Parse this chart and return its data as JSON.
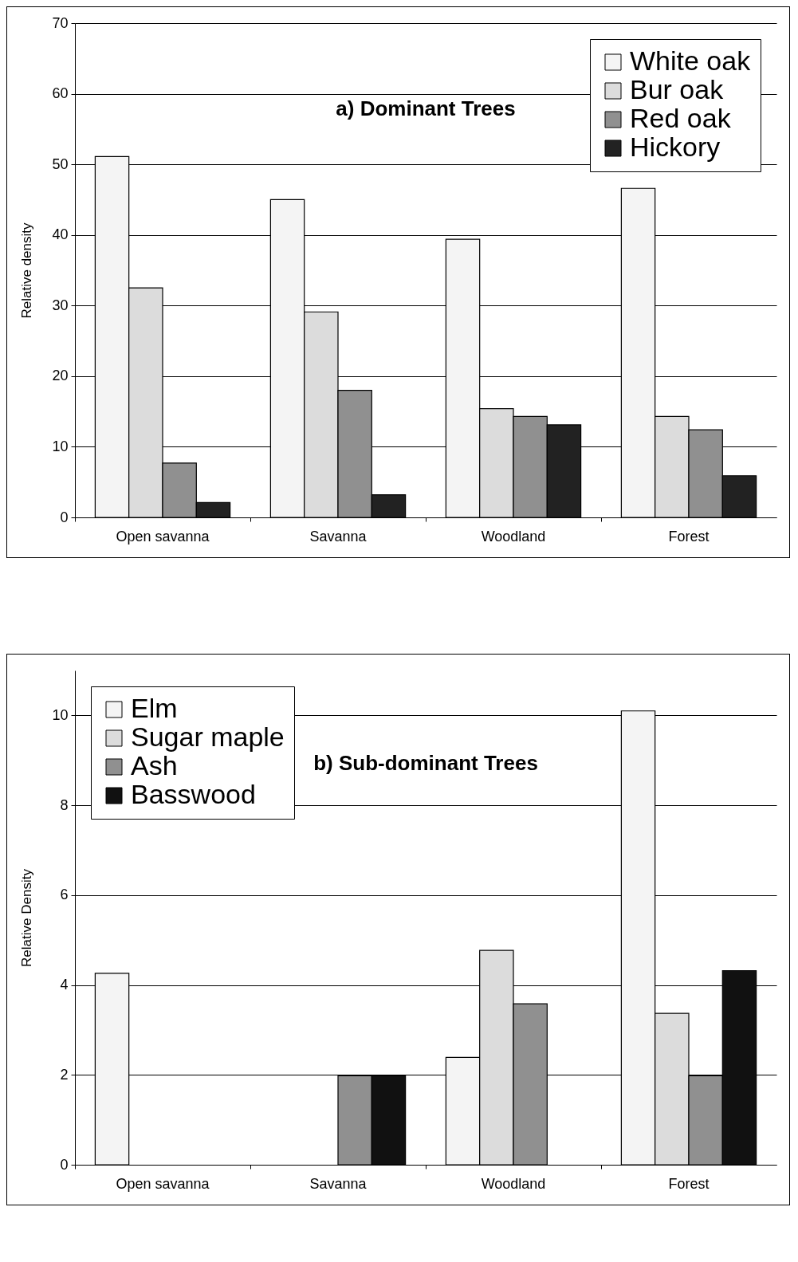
{
  "chart_data": [
    {
      "type": "bar",
      "title": "a) Dominant Trees",
      "ylabel": "Relative density",
      "categories": [
        "Open savanna",
        "Savanna",
        "Woodland",
        "Forest"
      ],
      "series": [
        {
          "name": "White oak",
          "color": "#f4f4f4",
          "values": [
            51.1,
            45.0,
            39.4,
            46.6
          ]
        },
        {
          "name": "Bur oak",
          "color": "#dcdcdc",
          "values": [
            32.5,
            29.1,
            15.4,
            14.3
          ]
        },
        {
          "name": "Red oak",
          "color": "#909090",
          "values": [
            7.7,
            18.0,
            14.3,
            12.4
          ]
        },
        {
          "name": "Hickory",
          "color": "#222222",
          "values": [
            2.1,
            3.2,
            13.1,
            5.9
          ]
        }
      ],
      "ylim": [
        0,
        70
      ],
      "yticks": [
        0,
        10,
        20,
        30,
        40,
        50,
        60,
        70
      ],
      "grid": "y",
      "legend": "top right"
    },
    {
      "type": "bar",
      "title": "b) Sub-dominant Trees",
      "ylabel": "Relative Density",
      "categories": [
        "Open savanna",
        "Savanna",
        "Woodland",
        "Forest"
      ],
      "series": [
        {
          "name": "Elm",
          "color": "#f4f4f4",
          "values": [
            4.26,
            null,
            2.39,
            10.1
          ]
        },
        {
          "name": "Sugar maple",
          "color": "#dcdcdc",
          "values": [
            null,
            null,
            4.77,
            3.37
          ]
        },
        {
          "name": "Ash",
          "color": "#909090",
          "values": [
            null,
            1.98,
            3.58,
            1.98
          ]
        },
        {
          "name": "Basswood",
          "color": "#111111",
          "values": [
            null,
            1.98,
            null,
            4.32
          ]
        }
      ],
      "ylim": [
        0,
        11
      ],
      "yticks": [
        0,
        2,
        4,
        6,
        8,
        10
      ],
      "grid": "y",
      "legend": "top left"
    }
  ]
}
